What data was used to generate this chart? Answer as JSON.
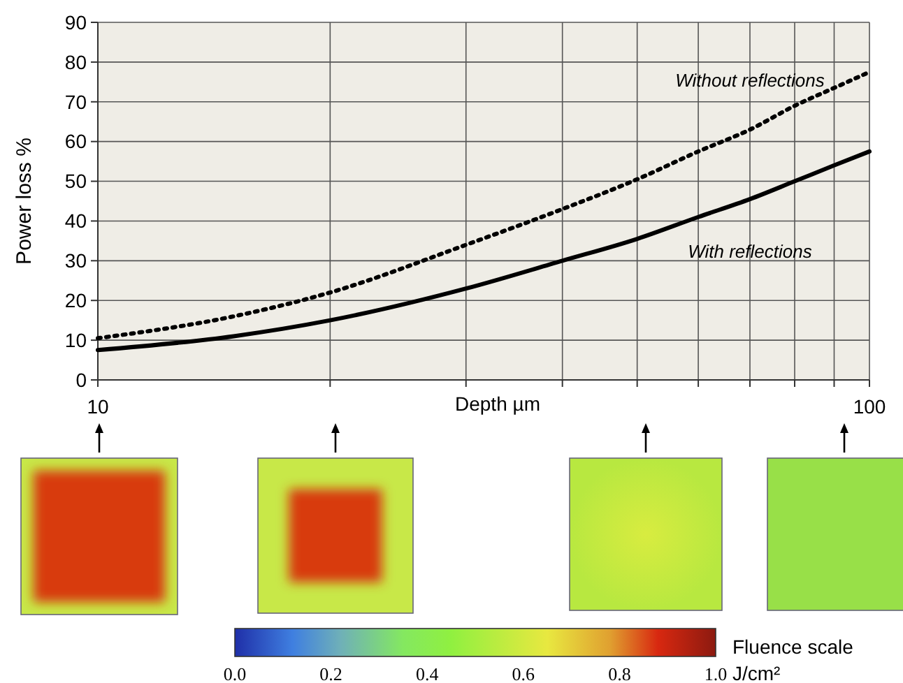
{
  "chart_data": {
    "type": "line",
    "xlabel": "Depth µm",
    "ylabel": "Power loss %",
    "log": "x",
    "grid": true,
    "xlim": [
      10,
      100
    ],
    "ylim": [
      0,
      90
    ],
    "xticks": [
      10,
      {
        "value": 20,
        "label": null
      },
      {
        "value": 30,
        "label": null
      },
      {
        "value": 40,
        "label": null
      },
      {
        "value": 50,
        "label": null
      },
      {
        "value": 60,
        "label": null
      },
      {
        "value": 70,
        "label": null
      },
      {
        "value": 80,
        "label": null
      },
      {
        "value": 90,
        "label": null
      },
      100
    ],
    "yticks": [
      0,
      10,
      20,
      30,
      40,
      50,
      60,
      70,
      80,
      90
    ],
    "x": [
      10,
      15,
      20,
      30,
      40,
      50,
      60,
      70,
      80,
      90,
      100
    ],
    "series": [
      {
        "name": "Without reflections",
        "color": "#000000",
        "line_style": "dotted",
        "values": [
          10.5,
          16,
          22,
          34,
          43,
          50.5,
          57.5,
          63,
          69,
          73.5,
          77.5
        ]
      },
      {
        "name": "With reflections",
        "color": "#000000",
        "line_style": "solid",
        "values": [
          7.5,
          11,
          15,
          23,
          30,
          35.5,
          41,
          45.5,
          50,
          54,
          57.5
        ]
      }
    ],
    "clabel": "Fluence scale J/cm²",
    "clim": [
      0,
      1
    ],
    "cticks": [
      {
        "value": 0,
        "label": "0.0"
      },
      0.2,
      0.4,
      0.6,
      0.8,
      {
        "value": 1,
        "label": "1.0"
      }
    ]
  }
}
